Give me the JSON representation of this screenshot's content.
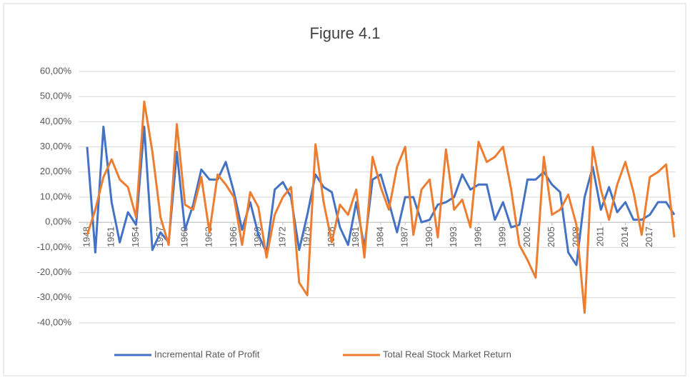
{
  "chart_data": {
    "type": "line",
    "title": "Figure 4.1",
    "x": [
      1948,
      1949,
      1950,
      1951,
      1952,
      1953,
      1954,
      1955,
      1956,
      1957,
      1958,
      1959,
      1960,
      1961,
      1962,
      1963,
      1964,
      1965,
      1966,
      1967,
      1968,
      1969,
      1970,
      1971,
      1972,
      1973,
      1974,
      1975,
      1976,
      1977,
      1978,
      1979,
      1980,
      1981,
      1982,
      1983,
      1984,
      1985,
      1986,
      1987,
      1988,
      1989,
      1990,
      1991,
      1992,
      1993,
      1994,
      1995,
      1996,
      1997,
      1998,
      1999,
      2000,
      2001,
      2002,
      2003,
      2004,
      2005,
      2006,
      2007,
      2008,
      2009,
      2010,
      2011,
      2012,
      2013,
      2014,
      2015,
      2016,
      2017,
      2018,
      2019,
      2020
    ],
    "xlim": [
      1948,
      2020
    ],
    "xticks": [
      1948,
      1951,
      1954,
      1957,
      1960,
      1963,
      1966,
      1969,
      1972,
      1975,
      1978,
      1981,
      1984,
      1987,
      1990,
      1993,
      1996,
      1999,
      2002,
      2005,
      2008,
      2011,
      2014,
      2017
    ],
    "ylim": [
      -40,
      60
    ],
    "yticks": [
      {
        "value": -40,
        "label": "-40,00%"
      },
      {
        "value": -30,
        "label": "-30,00%"
      },
      {
        "value": -20,
        "label": "-20,00%"
      },
      {
        "value": -10,
        "label": "-10,00%"
      },
      {
        "value": 0,
        "label": "0,00%"
      },
      {
        "value": 10,
        "label": "10,00%"
      },
      {
        "value": 20,
        "label": "20,00%"
      },
      {
        "value": 30,
        "label": "30,00%"
      },
      {
        "value": 40,
        "label": "40,00%"
      },
      {
        "value": 50,
        "label": "50,00%"
      },
      {
        "value": 60,
        "label": "60,00%"
      }
    ],
    "grid": true,
    "legend": "bottom",
    "series": [
      {
        "name": "Incremental Rate of Profit",
        "color": "#4472c4",
        "values": [
          30,
          -12,
          38,
          8,
          -8,
          4,
          -1,
          38,
          -11,
          -4,
          -8,
          28,
          -3,
          7,
          21,
          17,
          17,
          24,
          12,
          -3,
          8,
          -5,
          -12,
          13,
          16,
          10,
          -11,
          3,
          19,
          14,
          12,
          -2,
          -9,
          8,
          -10,
          17,
          19,
          8,
          -4,
          10,
          10,
          0,
          1,
          7,
          8,
          10,
          19,
          13,
          15,
          15,
          1,
          8,
          -2,
          -1,
          17,
          17,
          20,
          15,
          12,
          -12,
          -17,
          10,
          22,
          5,
          14,
          4,
          8,
          1,
          1,
          3,
          8,
          8,
          3
        ]
      },
      {
        "name": "Total Real Stock Market Return",
        "color": "#ed7d31",
        "values": [
          -5,
          5,
          18,
          25,
          17,
          14,
          2,
          48,
          28,
          2,
          -9,
          39,
          7,
          5,
          18,
          -4,
          19,
          15,
          10,
          -9,
          12,
          6,
          -14,
          3,
          10,
          14,
          -24,
          -29,
          31,
          8,
          -8,
          7,
          3,
          13,
          -14,
          26,
          14,
          5,
          22,
          30,
          -5,
          13,
          17,
          -6,
          29,
          5,
          9,
          -2,
          32,
          24,
          26,
          30,
          13,
          -9,
          -15,
          -22,
          26,
          3,
          5,
          11,
          -1,
          -36,
          30,
          13,
          1,
          15,
          24,
          12,
          -5,
          18,
          20,
          23,
          -6
        ]
      }
    ]
  }
}
